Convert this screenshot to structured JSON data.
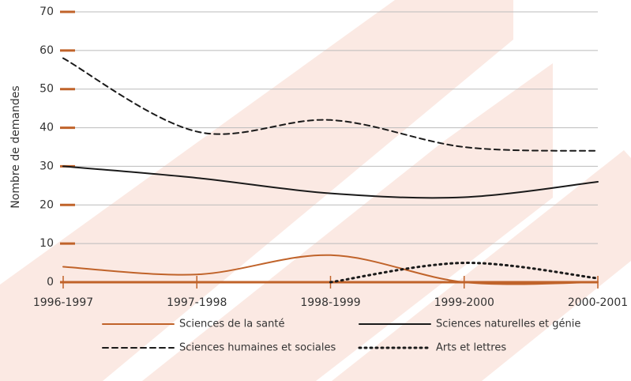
{
  "chart_data": {
    "type": "line",
    "y_label": "Nombre de demandes",
    "categories": [
      "1996-1997",
      "1997-1998",
      "1998-1999",
      "1999-2000",
      "2000-2001"
    ],
    "series": [
      {
        "name": "Sciences de la santé",
        "color": "#c0632a",
        "dash": "solid",
        "values": [
          4,
          2,
          7,
          0,
          0
        ]
      },
      {
        "name": "Sciences naturelles et génie",
        "color": "#1a1a1a",
        "dash": "solid",
        "values": [
          30,
          27,
          23,
          22,
          26
        ]
      },
      {
        "name": "Sciences humaines et sociales",
        "color": "#1a1a1a",
        "dash": "dashed",
        "values": [
          58,
          39,
          42,
          35,
          34
        ]
      },
      {
        "name": "Arts et lettres",
        "color": "#1a1a1a",
        "dash": "dotted",
        "values": [
          null,
          null,
          0,
          5,
          1
        ]
      }
    ],
    "ylim": [
      0,
      70
    ],
    "yticks": [
      0,
      10,
      20,
      30,
      40,
      50,
      60,
      70
    ],
    "grid": true,
    "axis_color": "#c0632a",
    "legend": "bottom"
  }
}
